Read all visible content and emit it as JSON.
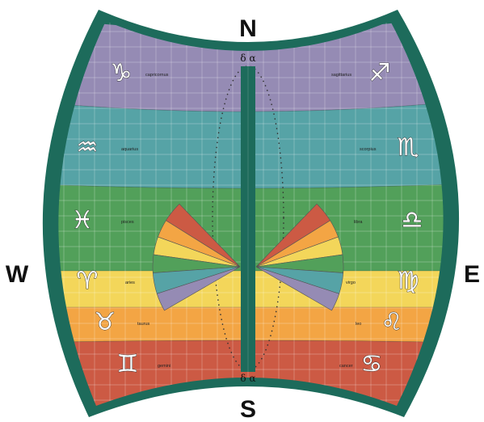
{
  "compass": {
    "north": "N",
    "south": "S",
    "west": "W",
    "east": "E"
  },
  "colors": {
    "frame": "#1d6b5b",
    "grid": "#ffffff",
    "purple": "#958bb4",
    "teal": "#56a3a6",
    "green": "#52a05a",
    "yellow": "#f3d65a",
    "orange": "#f3a544",
    "red": "#cc5a44"
  },
  "bands": [
    {
      "color": "purple",
      "left": {
        "name": "capricornus",
        "glyph": "♑"
      },
      "right": {
        "name": "sagittarius",
        "glyph": "♐"
      }
    },
    {
      "color": "teal",
      "left": {
        "name": "aquarius",
        "glyph": "♒"
      },
      "right": {
        "name": "scorpius",
        "glyph": "♏"
      }
    },
    {
      "color": "green",
      "left": {
        "name": "pisces",
        "glyph": "♓"
      },
      "right": {
        "name": "libra",
        "glyph": "♎"
      }
    },
    {
      "color": "yellow",
      "left": {
        "name": "aries",
        "glyph": "♈"
      },
      "right": {
        "name": "virgo",
        "glyph": "♍"
      }
    },
    {
      "color": "orange",
      "left": {
        "name": "taurus",
        "glyph": "♉"
      },
      "right": {
        "name": "leo",
        "glyph": "♌"
      }
    },
    {
      "color": "red",
      "left": {
        "name": "gemini",
        "glyph": "♊"
      },
      "right": {
        "name": "cancer",
        "glyph": "♋"
      }
    }
  ],
  "meridian": {
    "top_label": "δ α",
    "bottom_label": "δ α"
  },
  "fan": {
    "wedge_colors": [
      "red",
      "orange",
      "yellow",
      "green",
      "teal",
      "purple"
    ]
  }
}
